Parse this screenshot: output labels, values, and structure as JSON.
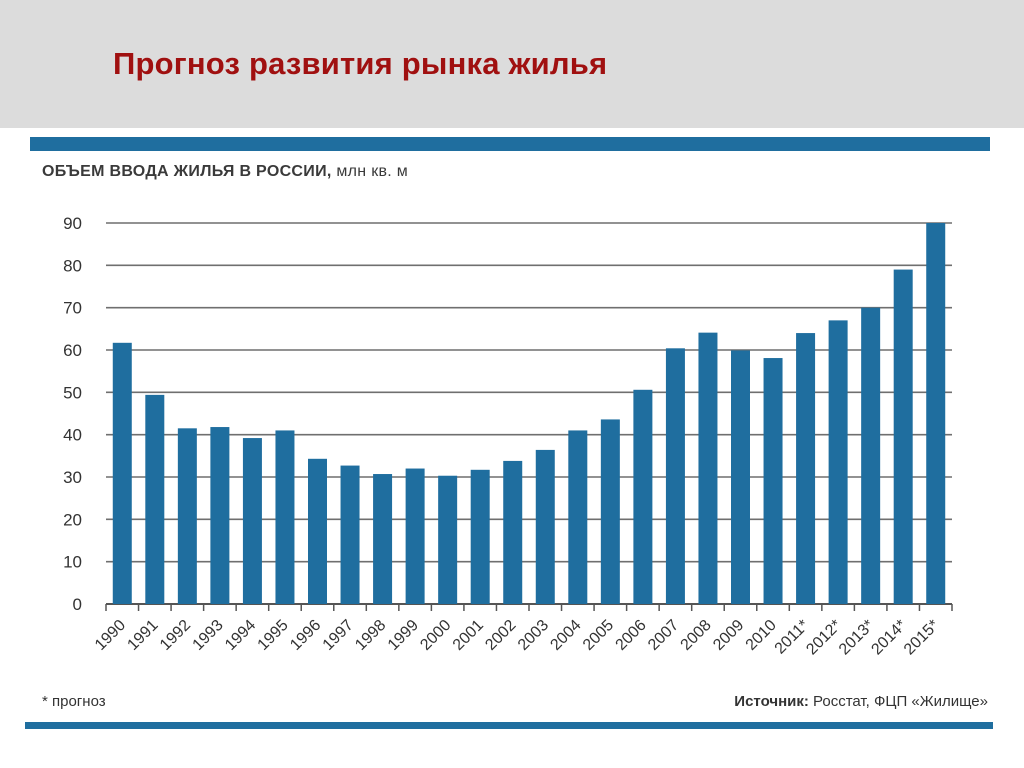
{
  "slide_title": "Прогноз развития рынка жилья",
  "footnote": "* прогноз",
  "source": {
    "label": "Источник:",
    "text": "Росстат, ФЦП «Жилище»"
  },
  "colors": {
    "bar": "#1f6e9f",
    "title": "#a01010",
    "rule": "#1f6e9f"
  },
  "chart_data": {
    "type": "bar",
    "title": "ОБЪЕМ ВВОДА ЖИЛЬЯ В РОССИИ,",
    "unit": "млн кв. м",
    "categories": [
      "1990",
      "1991",
      "1992",
      "1993",
      "1994",
      "1995",
      "1996",
      "1997",
      "1998",
      "1999",
      "2000",
      "2001",
      "2002",
      "2003",
      "2004",
      "2005",
      "2006",
      "2007",
      "2008",
      "2009",
      "2010",
      "2011*",
      "2012*",
      "2013*",
      "2014*",
      "2015*"
    ],
    "values": [
      61.7,
      49.4,
      41.5,
      41.8,
      39.2,
      41.0,
      34.3,
      32.7,
      30.7,
      32.0,
      30.3,
      31.7,
      33.8,
      36.4,
      41.0,
      43.6,
      50.6,
      60.4,
      64.1,
      59.9,
      58.1,
      64.0,
      67.0,
      70.0,
      79.0,
      90.0
    ],
    "yticks": [
      "0",
      "10",
      "20",
      "30",
      "40",
      "50",
      "60",
      "70",
      "80",
      "90"
    ],
    "ylim": [
      0,
      90
    ],
    "grid": true,
    "legend": "none"
  }
}
